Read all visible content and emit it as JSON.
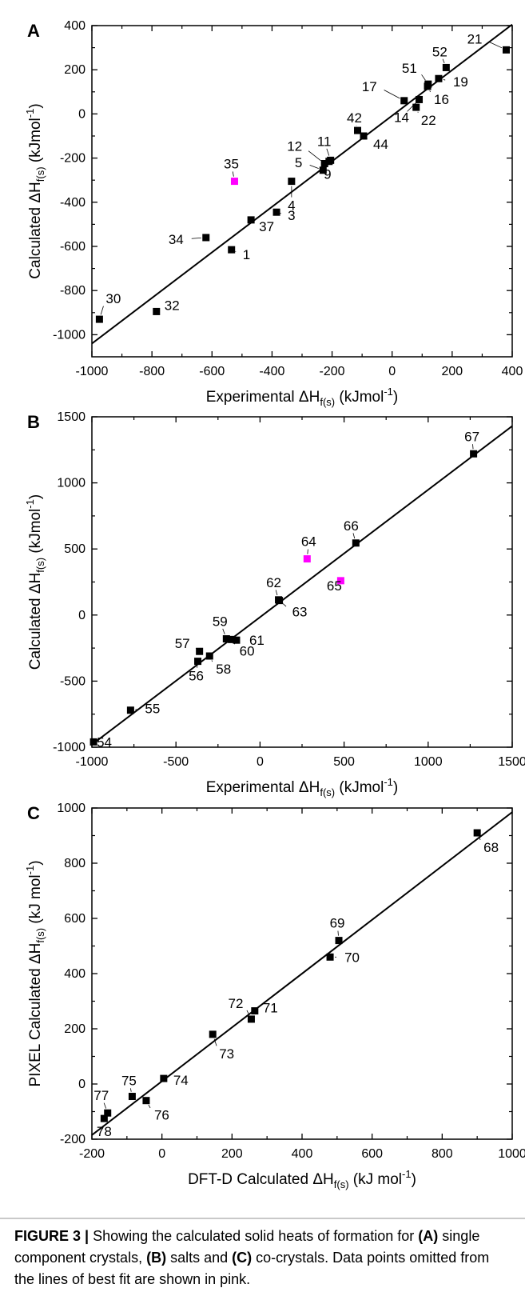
{
  "figure": {
    "caption": {
      "label": "FIGURE 3 |",
      "parts": [
        {
          "text": " Showing the calculated solid heats of formation for ",
          "bold": false
        },
        {
          "text": "(A)",
          "bold": true
        },
        {
          "text": " single component crystals, ",
          "bold": false
        },
        {
          "text": "(B)",
          "bold": true
        },
        {
          "text": " salts and ",
          "bold": false
        },
        {
          "text": "(C)",
          "bold": true
        },
        {
          "text": " co-crystals. Data points omitted from the lines of best fit are shown in pink.",
          "bold": false
        }
      ]
    },
    "colors": {
      "point": "#000000",
      "omitted": "#ff00ff",
      "line": "#000000"
    }
  },
  "chart_data": [
    {
      "type": "scatter",
      "panel_label": "A",
      "xlabel": "Experimental ΔH",
      "xlabel_sub": "f(s)",
      "xlabel_unit": " (kJmol",
      "xlabel_sup": "-1",
      "xlabel_end": ")",
      "ylabel": "Calculated ΔH",
      "ylabel_sub": "f(s)",
      "ylabel_unit": " (kJmol",
      "ylabel_sup": "-1",
      "ylabel_end": ")",
      "xlim": [
        -1000,
        400
      ],
      "ylim": [
        -1100,
        400
      ],
      "xticks": [
        -1000,
        -800,
        -600,
        -400,
        -200,
        0,
        200,
        400
      ],
      "yticks": [
        -1000,
        -800,
        -600,
        -400,
        -200,
        0,
        200,
        400
      ],
      "fit_line": [
        [
          -1000,
          -1040
        ],
        [
          400,
          405
        ]
      ],
      "points": [
        {
          "label": "21",
          "x": 380,
          "y": 290,
          "omitted": false
        },
        {
          "label": "52",
          "x": 180,
          "y": 210,
          "omitted": false
        },
        {
          "label": "19",
          "x": 155,
          "y": 160,
          "omitted": false
        },
        {
          "label": "51",
          "x": 120,
          "y": 135,
          "omitted": false
        },
        {
          "label": "16",
          "x": 118,
          "y": 125,
          "omitted": false
        },
        {
          "label": "22",
          "x": 80,
          "y": 30,
          "omitted": false
        },
        {
          "label": "14",
          "x": 90,
          "y": 65,
          "omitted": false
        },
        {
          "label": "17",
          "x": 40,
          "y": 60,
          "omitted": false
        },
        {
          "label": "42",
          "x": -115,
          "y": -75,
          "omitted": false
        },
        {
          "label": "44",
          "x": -95,
          "y": -100,
          "omitted": false
        },
        {
          "label": "11",
          "x": -205,
          "y": -210,
          "omitted": false
        },
        {
          "label": "12",
          "x": -225,
          "y": -225,
          "omitted": false
        },
        {
          "label": "9",
          "x": -210,
          "y": -215,
          "omitted": false
        },
        {
          "label": "5",
          "x": -230,
          "y": -255,
          "omitted": false
        },
        {
          "label": "4",
          "x": -335,
          "y": -305,
          "omitted": false
        },
        {
          "label": "35",
          "x": -525,
          "y": -305,
          "omitted": true
        },
        {
          "label": "3",
          "x": -385,
          "y": -445,
          "omitted": false
        },
        {
          "label": "37",
          "x": -470,
          "y": -480,
          "omitted": false
        },
        {
          "label": "34",
          "x": -620,
          "y": -560,
          "omitted": false
        },
        {
          "label": "1",
          "x": -535,
          "y": -615,
          "omitted": false
        },
        {
          "label": "32",
          "x": -785,
          "y": -895,
          "omitted": false
        },
        {
          "label": "30",
          "x": -975,
          "y": -930,
          "omitted": false
        }
      ]
    },
    {
      "type": "scatter",
      "panel_label": "B",
      "xlabel": "Experimental ΔH",
      "xlabel_sub": "f(s)",
      "xlabel_unit": " (kJmol",
      "xlabel_sup": "-1",
      "xlabel_end": ")",
      "ylabel": "Calculated ΔH",
      "ylabel_sub": "f(s)",
      "ylabel_unit": " (kJmol",
      "ylabel_sup": "-1",
      "ylabel_end": ")",
      "xlim": [
        -1000,
        1500
      ],
      "ylim": [
        -1000,
        1500
      ],
      "xticks": [
        -1000,
        -500,
        0,
        500,
        1000,
        1500
      ],
      "yticks": [
        -1000,
        -500,
        0,
        500,
        1000,
        1500
      ],
      "fit_line": [
        [
          -1000,
          -980
        ],
        [
          1500,
          1430
        ]
      ],
      "points": [
        {
          "label": "67",
          "x": 1270,
          "y": 1220,
          "omitted": false
        },
        {
          "label": "66",
          "x": 570,
          "y": 545,
          "omitted": false
        },
        {
          "label": "64",
          "x": 280,
          "y": 425,
          "omitted": true
        },
        {
          "label": "65",
          "x": 480,
          "y": 260,
          "omitted": true
        },
        {
          "label": "62",
          "x": 110,
          "y": 115,
          "omitted": false
        },
        {
          "label": "63",
          "x": 115,
          "y": 110,
          "omitted": false
        },
        {
          "label": "59",
          "x": -200,
          "y": -180,
          "omitted": false
        },
        {
          "label": "61",
          "x": -140,
          "y": -190,
          "omitted": false
        },
        {
          "label": "60",
          "x": -170,
          "y": -185,
          "omitted": false
        },
        {
          "label": "57",
          "x": -360,
          "y": -275,
          "omitted": false
        },
        {
          "label": "58",
          "x": -300,
          "y": -310,
          "omitted": false
        },
        {
          "label": "56",
          "x": -370,
          "y": -350,
          "omitted": false
        },
        {
          "label": "55",
          "x": -770,
          "y": -720,
          "omitted": false
        },
        {
          "label": "54",
          "x": -990,
          "y": -960,
          "omitted": false
        }
      ]
    },
    {
      "type": "scatter",
      "panel_label": "C",
      "xlabel": "DFT-D Calculated ΔH",
      "xlabel_sub": "f(s)",
      "xlabel_unit": " (kJ mol",
      "xlabel_sup": "-1",
      "xlabel_end": ")",
      "ylabel": "PIXEL Calculated ΔH",
      "ylabel_sub": "f(s)",
      "ylabel_unit": " (kJ mol",
      "ylabel_sup": "-1",
      "ylabel_end": ")",
      "xlim": [
        -200,
        1000
      ],
      "ylim": [
        -200,
        1000
      ],
      "xticks": [
        -200,
        0,
        200,
        400,
        600,
        800,
        1000
      ],
      "yticks": [
        -200,
        0,
        200,
        400,
        600,
        800,
        1000
      ],
      "fit_line": [
        [
          -200,
          -185
        ],
        [
          1000,
          985
        ]
      ],
      "points": [
        {
          "label": "68",
          "x": 900,
          "y": 910,
          "omitted": false
        },
        {
          "label": "69",
          "x": 505,
          "y": 520,
          "omitted": false
        },
        {
          "label": "70",
          "x": 480,
          "y": 460,
          "omitted": false
        },
        {
          "label": "72",
          "x": 255,
          "y": 235,
          "omitted": false
        },
        {
          "label": "71",
          "x": 265,
          "y": 265,
          "omitted": false
        },
        {
          "label": "73",
          "x": 145,
          "y": 180,
          "omitted": false
        },
        {
          "label": "74",
          "x": 5,
          "y": 20,
          "omitted": false
        },
        {
          "label": "75",
          "x": -85,
          "y": -45,
          "omitted": false
        },
        {
          "label": "76",
          "x": -45,
          "y": -60,
          "omitted": false
        },
        {
          "label": "77",
          "x": -155,
          "y": -105,
          "omitted": false
        },
        {
          "label": "78",
          "x": -165,
          "y": -125,
          "omitted": false
        }
      ]
    }
  ]
}
